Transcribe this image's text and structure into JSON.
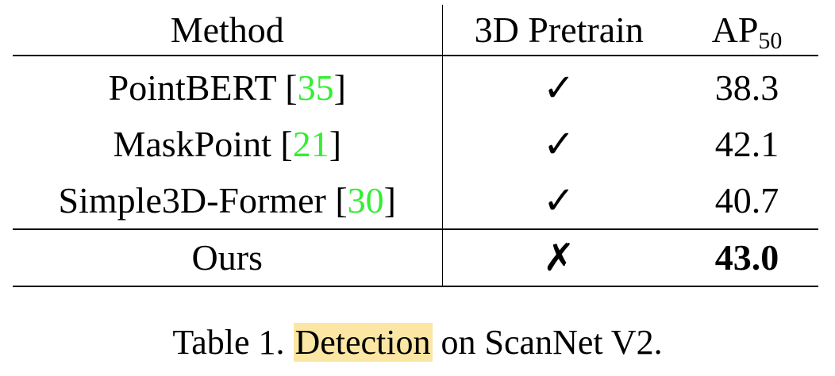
{
  "table": {
    "headers": {
      "method": "Method",
      "pretrain": "3D Pretrain",
      "ap_main": "AP",
      "ap_sub": "50"
    },
    "rows": [
      {
        "method": "PointBERT",
        "ref_open": "[",
        "ref": "35",
        "ref_close": "]",
        "pretrain_icon": "checkmark-icon",
        "pretrain_mark": "✓",
        "ap": "38.3"
      },
      {
        "method": "MaskPoint",
        "ref_open": "[",
        "ref": "21",
        "ref_close": "]",
        "pretrain_icon": "checkmark-icon",
        "pretrain_mark": "✓",
        "ap": "42.1"
      },
      {
        "method": "Simple3D-Former",
        "ref_open": "[",
        "ref": "30",
        "ref_close": "]",
        "pretrain_icon": "checkmark-icon",
        "pretrain_mark": "✓",
        "ap": "40.7"
      }
    ],
    "ours": {
      "method": "Ours",
      "pretrain_icon": "cross-icon",
      "pretrain_mark": "✗",
      "ap": "43.0"
    }
  },
  "caption": {
    "prefix": "Table 1. ",
    "highlighted": "Detection",
    "suffix": " on ScanNet V2."
  },
  "colors": {
    "reference_link": "#33ee33",
    "highlight": "#fbe6a4"
  }
}
